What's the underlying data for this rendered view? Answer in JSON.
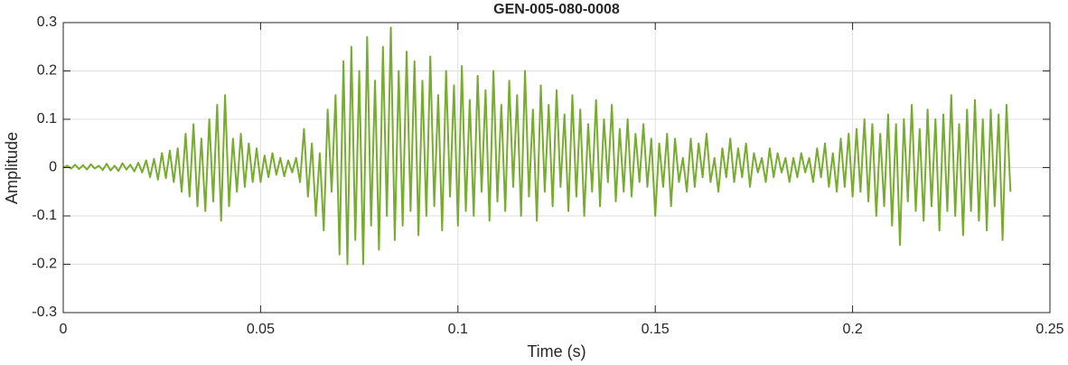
{
  "chart_data": {
    "type": "line",
    "title": "GEN-005-080-0008",
    "xlabel": "Time (s)",
    "ylabel": "Amplitude",
    "color": "#77ac30",
    "grid": true,
    "xlim": [
      0,
      0.25
    ],
    "xticks": [
      0,
      0.05,
      0.1,
      0.15,
      0.2,
      0.25
    ],
    "ylim": [
      -0.3,
      0.3
    ],
    "yticks": [
      -0.3,
      -0.2,
      -0.1,
      0,
      0.1,
      0.2,
      0.3
    ],
    "x": [
      0,
      0.001,
      0.002,
      0.003,
      0.004,
      0.005,
      0.006,
      0.007,
      0.008,
      0.009,
      0.01,
      0.011,
      0.012,
      0.013,
      0.014,
      0.015,
      0.016,
      0.017,
      0.018,
      0.019,
      0.02,
      0.021,
      0.022,
      0.023,
      0.024,
      0.025,
      0.026,
      0.027,
      0.028,
      0.029,
      0.03,
      0.031,
      0.032,
      0.033,
      0.034,
      0.035,
      0.036,
      0.037,
      0.038,
      0.039,
      0.04,
      0.041,
      0.042,
      0.043,
      0.044,
      0.045,
      0.046,
      0.047,
      0.048,
      0.049,
      0.05,
      0.051,
      0.052,
      0.053,
      0.054,
      0.055,
      0.056,
      0.057,
      0.058,
      0.059,
      0.06,
      0.061,
      0.062,
      0.063,
      0.064,
      0.065,
      0.066,
      0.067,
      0.068,
      0.069,
      0.07,
      0.071,
      0.072,
      0.073,
      0.074,
      0.075,
      0.076,
      0.077,
      0.078,
      0.079,
      0.08,
      0.081,
      0.082,
      0.083,
      0.084,
      0.085,
      0.086,
      0.087,
      0.088,
      0.089,
      0.09,
      0.091,
      0.092,
      0.093,
      0.094,
      0.095,
      0.096,
      0.097,
      0.098,
      0.099,
      0.1,
      0.101,
      0.102,
      0.103,
      0.104,
      0.105,
      0.106,
      0.107,
      0.108,
      0.109,
      0.11,
      0.111,
      0.112,
      0.113,
      0.114,
      0.115,
      0.116,
      0.117,
      0.118,
      0.119,
      0.12,
      0.121,
      0.122,
      0.123,
      0.124,
      0.125,
      0.126,
      0.127,
      0.128,
      0.129,
      0.13,
      0.131,
      0.132,
      0.133,
      0.134,
      0.135,
      0.136,
      0.137,
      0.138,
      0.139,
      0.14,
      0.141,
      0.142,
      0.143,
      0.144,
      0.145,
      0.146,
      0.147,
      0.148,
      0.149,
      0.15,
      0.151,
      0.152,
      0.153,
      0.154,
      0.155,
      0.156,
      0.157,
      0.158,
      0.159,
      0.16,
      0.161,
      0.162,
      0.163,
      0.164,
      0.165,
      0.166,
      0.167,
      0.168,
      0.169,
      0.17,
      0.171,
      0.172,
      0.173,
      0.174,
      0.175,
      0.176,
      0.177,
      0.178,
      0.179,
      0.18,
      0.181,
      0.182,
      0.183,
      0.184,
      0.185,
      0.186,
      0.187,
      0.188,
      0.189,
      0.19,
      0.191,
      0.192,
      0.193,
      0.194,
      0.195,
      0.196,
      0.197,
      0.198,
      0.199,
      0.2,
      0.201,
      0.202,
      0.203,
      0.204,
      0.205,
      0.206,
      0.207,
      0.208,
      0.209,
      0.21,
      0.211,
      0.212,
      0.213,
      0.214,
      0.215,
      0.216,
      0.217,
      0.218,
      0.219,
      0.22,
      0.221,
      0.222,
      0.223,
      0.224,
      0.225,
      0.226,
      0.227,
      0.228,
      0.229,
      0.23,
      0.231,
      0.232,
      0.233,
      0.234,
      0.235,
      0.236,
      0.237,
      0.238,
      0.239,
      0.24
    ],
    "values": [
      0,
      0.004,
      -0.002,
      0.006,
      -0.003,
      0.005,
      -0.004,
      0.007,
      -0.002,
      0.004,
      -0.005,
      0.008,
      -0.006,
      0.004,
      -0.007,
      0.009,
      -0.004,
      0.006,
      -0.008,
      0.01,
      -0.01,
      0.015,
      -0.02,
      0.018,
      -0.025,
      0.03,
      -0.022,
      0.035,
      -0.03,
      0.04,
      -0.05,
      0.07,
      -0.06,
      0.09,
      -0.08,
      0.06,
      -0.09,
      0.1,
      -0.07,
      0.13,
      -0.11,
      0.15,
      -0.08,
      0.06,
      -0.05,
      0.07,
      -0.04,
      0.05,
      -0.03,
      0.04,
      -0.03,
      0.025,
      -0.02,
      0.03,
      -0.015,
      0.02,
      -0.018,
      0.015,
      -0.01,
      0.02,
      -0.03,
      0.08,
      -0.06,
      0.05,
      -0.1,
      0.03,
      -0.13,
      0.12,
      -0.05,
      0.15,
      -0.18,
      0.22,
      -0.2,
      0.25,
      -0.15,
      0.2,
      -0.2,
      0.27,
      -0.12,
      0.18,
      -0.17,
      0.25,
      -0.1,
      0.29,
      -0.15,
      0.2,
      -0.12,
      0.24,
      -0.09,
      0.22,
      -0.14,
      0.18,
      -0.1,
      0.23,
      -0.08,
      0.15,
      -0.13,
      0.2,
      -0.06,
      0.17,
      -0.12,
      0.21,
      -0.09,
      0.14,
      -0.1,
      0.19,
      -0.05,
      0.16,
      -0.11,
      0.2,
      -0.07,
      0.13,
      -0.09,
      0.18,
      -0.04,
      0.15,
      -0.1,
      0.2,
      -0.06,
      0.12,
      -0.11,
      0.17,
      -0.05,
      0.13,
      -0.08,
      0.16,
      -0.04,
      0.11,
      -0.09,
      0.15,
      -0.06,
      0.12,
      -0.1,
      0.09,
      -0.05,
      0.14,
      -0.08,
      0.1,
      -0.03,
      0.13,
      -0.07,
      0.08,
      -0.05,
      0.1,
      -0.06,
      0.07,
      -0.03,
      0.09,
      -0.04,
      0.06,
      -0.1,
      0.05,
      -0.04,
      0.07,
      -0.08,
      0.06,
      -0.03,
      0.02,
      -0.05,
      0.06,
      -0.04,
      0.05,
      -0.02,
      0.07,
      -0.03,
      0.02,
      -0.05,
      0.04,
      -0.02,
      0.06,
      -0.03,
      0.04,
      -0.02,
      0.05,
      -0.04,
      0.03,
      -0.01,
      0.02,
      -0.03,
      0.04,
      -0.02,
      0.03,
      -0.01,
      0.02,
      -0.03,
      0.02,
      -0.02,
      0.03,
      -0.01,
      0.02,
      -0.03,
      0.04,
      -0.02,
      0.05,
      -0.04,
      0.03,
      -0.05,
      0.06,
      -0.04,
      0.07,
      -0.06,
      0.08,
      -0.05,
      0.1,
      -0.07,
      0.09,
      -0.1,
      0.07,
      -0.08,
      0.11,
      -0.12,
      0.09,
      -0.16,
      0.1,
      -0.07,
      0.13,
      -0.09,
      0.08,
      -0.11,
      0.12,
      -0.08,
      0.1,
      -0.13,
      0.11,
      -0.09,
      0.15,
      -0.1,
      0.09,
      -0.14,
      0.12,
      -0.09,
      0.14,
      -0.11,
      0.1,
      -0.13,
      0.12,
      -0.08,
      0.11,
      -0.15,
      0.13,
      -0.05
    ]
  }
}
